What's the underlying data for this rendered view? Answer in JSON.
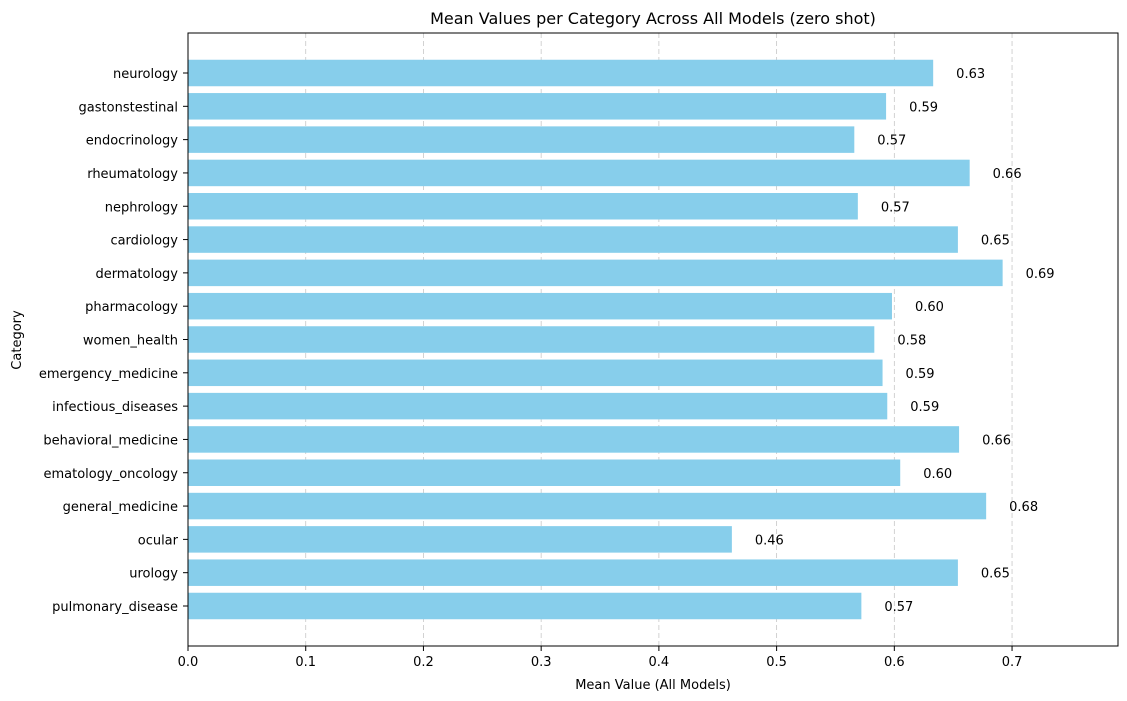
{
  "chart_data": {
    "type": "bar",
    "orientation": "horizontal",
    "title": "Mean Values per Category Across All Models (zero shot)",
    "xlabel": "Mean Value (All Models)",
    "ylabel": "Category",
    "xlim": [
      0,
      0.79
    ],
    "xticks": [
      0.0,
      0.1,
      0.2,
      0.3,
      0.4,
      0.5,
      0.6,
      0.7
    ],
    "xtick_labels": [
      "0.0",
      "0.1",
      "0.2",
      "0.3",
      "0.4",
      "0.5",
      "0.6",
      "0.7"
    ],
    "grid": "x-dashed",
    "bar_color": "#87CEEB",
    "categories": [
      "neurology",
      "gastonstestinal",
      "endocrinology",
      "rheumatology",
      "nephrology",
      "cardiology",
      "dermatology",
      "pharmacology",
      "women_health",
      "emergency_medicine",
      "infectious_diseases",
      "behavioral_medicine",
      "ematology_oncology",
      "general_medicine",
      "ocular",
      "urology",
      "pulmonary_disease"
    ],
    "values": [
      0.633,
      0.593,
      0.566,
      0.664,
      0.569,
      0.654,
      0.692,
      0.598,
      0.583,
      0.59,
      0.594,
      0.655,
      0.605,
      0.678,
      0.462,
      0.654,
      0.572
    ],
    "data_labels": [
      "0.63",
      "0.59",
      "0.57",
      "0.66",
      "0.57",
      "0.65",
      "0.69",
      "0.60",
      "0.58",
      "0.59",
      "0.59",
      "0.66",
      "0.60",
      "0.68",
      "0.46",
      "0.65",
      "0.57"
    ]
  }
}
